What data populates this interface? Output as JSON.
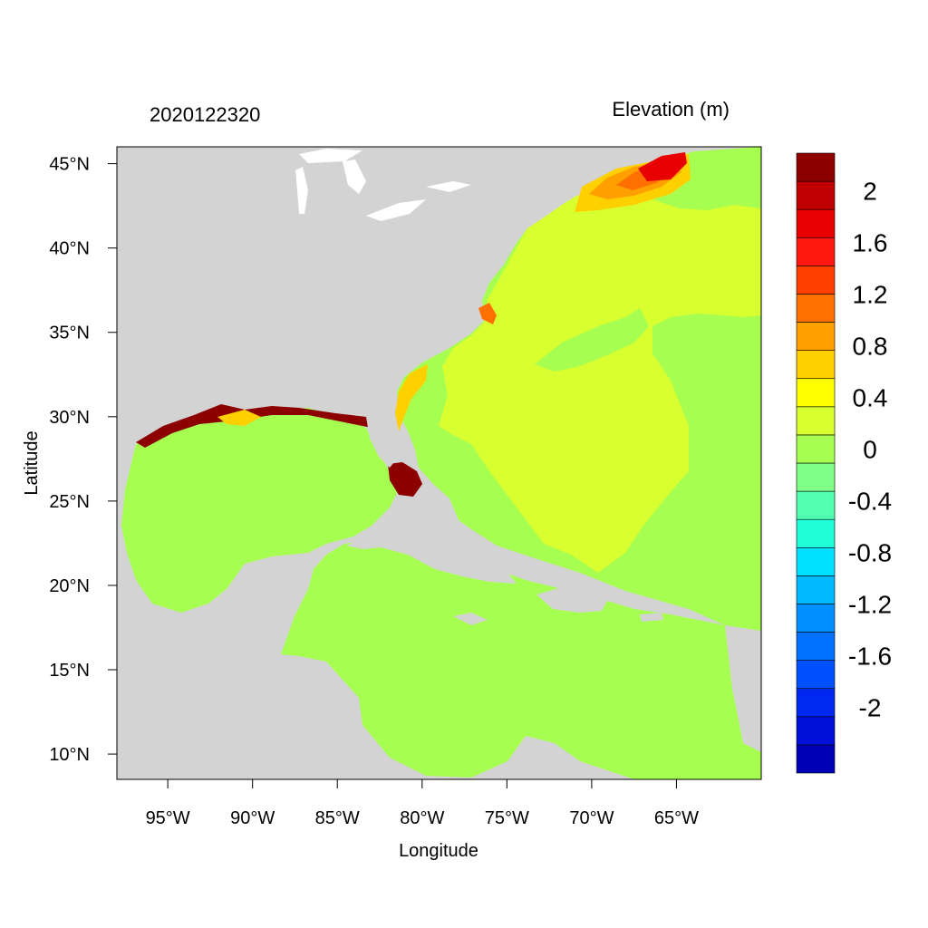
{
  "title_left": "2020122320",
  "title_right": "Elevation (m)",
  "xlabel": "Longitude",
  "ylabel": "Latitude",
  "map": {
    "lon_range": [
      -98,
      -60
    ],
    "lat_range": [
      8.5,
      46
    ],
    "land_color": "#d3d3d3",
    "water_color": "#ffffff",
    "x_ticks": [
      {
        "value": -95,
        "label": "95°W"
      },
      {
        "value": -90,
        "label": "90°W"
      },
      {
        "value": -85,
        "label": "85°W"
      },
      {
        "value": -80,
        "label": "80°W"
      },
      {
        "value": -75,
        "label": "75°W"
      },
      {
        "value": -70,
        "label": "70°W"
      },
      {
        "value": -65,
        "label": "65°W"
      }
    ],
    "y_ticks": [
      {
        "value": 10,
        "label": "10°N"
      },
      {
        "value": 15,
        "label": "15°N"
      },
      {
        "value": 20,
        "label": "20°N"
      },
      {
        "value": 25,
        "label": "25°N"
      },
      {
        "value": 30,
        "label": "30°N"
      },
      {
        "value": 35,
        "label": "35°N"
      },
      {
        "value": 40,
        "label": "40°N"
      },
      {
        "value": 45,
        "label": "45°N"
      }
    ]
  },
  "colorbar": {
    "colors": [
      "#0000b4",
      "#0010d8",
      "#0028f0",
      "#0050ff",
      "#0070ff",
      "#0090ff",
      "#00b8ff",
      "#00e0ff",
      "#20ffd8",
      "#50ffb0",
      "#80ff88",
      "#a6ff50",
      "#d8ff30",
      "#ffff00",
      "#ffd000",
      "#ffa000",
      "#ff7000",
      "#ff4000",
      "#ff1810",
      "#e80000",
      "#c00000",
      "#8c0000"
    ],
    "labels": [
      {
        "value": -2,
        "label": "-2"
      },
      {
        "value": -1.6,
        "label": "-1.6"
      },
      {
        "value": -1.2,
        "label": "-1.2"
      },
      {
        "value": -0.8,
        "label": "-0.8"
      },
      {
        "value": -0.4,
        "label": "-0.4"
      },
      {
        "value": 0,
        "label": "0"
      },
      {
        "value": 0.4,
        "label": "0.4"
      },
      {
        "value": 0.8,
        "label": "0.8"
      },
      {
        "value": 1.2,
        "label": "1.2"
      },
      {
        "value": 1.6,
        "label": "1.6"
      },
      {
        "value": 2,
        "label": "2"
      }
    ]
  },
  "field": {
    "ocean_base_color": "#a6ff50",
    "anomaly_color": "#d8ff30",
    "gulf_of_maine_colors": [
      "#ffd000",
      "#ffa000",
      "#ff7000",
      "#ff4000",
      "#e80000"
    ],
    "surge_color": "#8c0000"
  }
}
